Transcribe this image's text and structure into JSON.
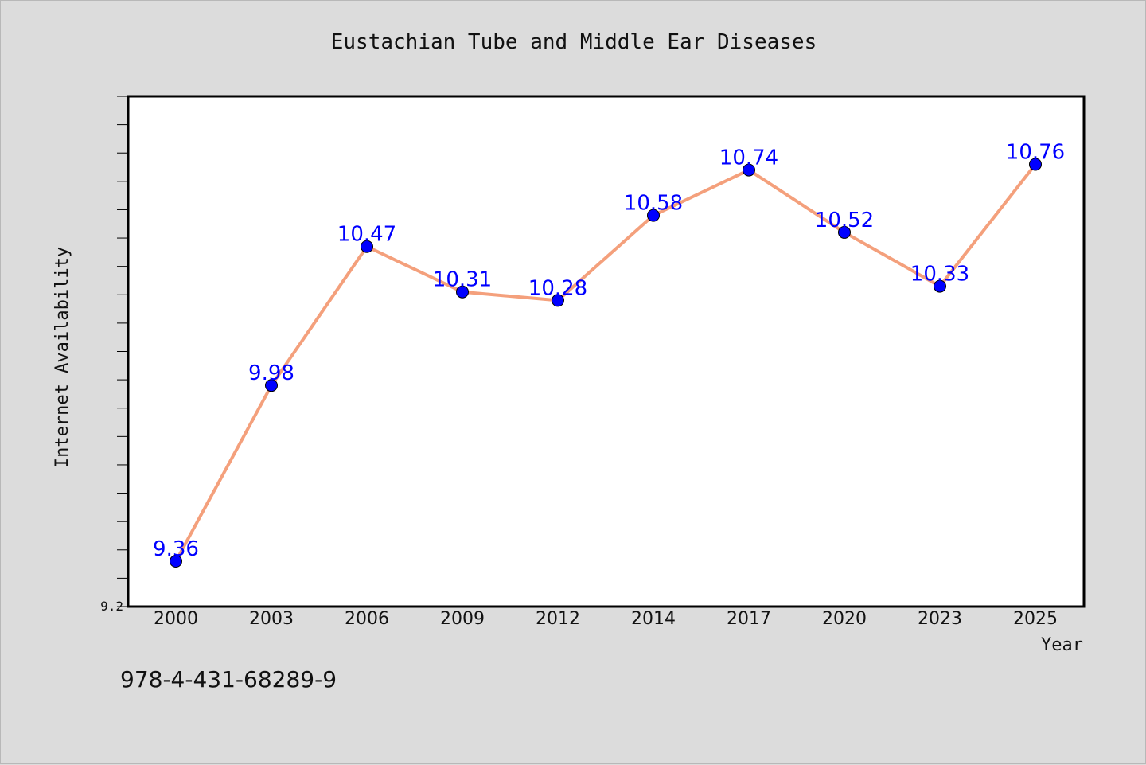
{
  "chart_data": {
    "type": "line",
    "title": "Eustachian Tube and Middle Ear Diseases",
    "xlabel": "Year",
    "ylabel": "Internet Availability",
    "categories": [
      "2000",
      "2003",
      "2006",
      "2009",
      "2012",
      "2014",
      "2017",
      "2020",
      "2023",
      "2025"
    ],
    "series": [
      {
        "values": [
          9.36,
          9.98,
          10.47,
          10.31,
          10.28,
          10.58,
          10.74,
          10.52,
          10.33,
          10.76
        ],
        "labels": [
          "9.36",
          "9.98",
          "10.47",
          "10.31",
          "10.28",
          "10.58",
          "10.74",
          "10.52",
          "10.33",
          "10.76"
        ],
        "line_color": "#f4a07c",
        "marker_color": "#0000ff"
      }
    ],
    "ylim": [
      9.2,
      11.0
    ],
    "yticks_labeled": [
      "9.2"
    ],
    "grid": false,
    "legend": "none"
  },
  "annotation": "978-4-431-68289-9"
}
